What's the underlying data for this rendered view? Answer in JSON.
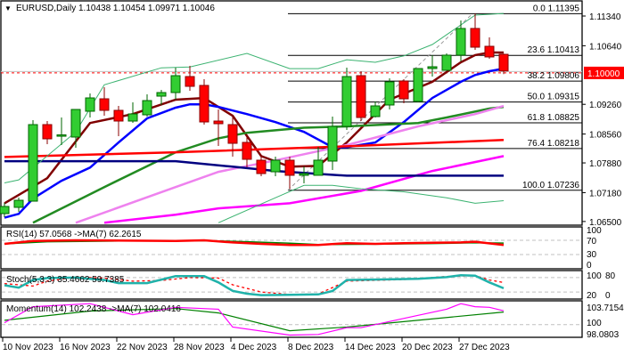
{
  "header": {
    "menu_icon": "triangle-down-icon",
    "symbol_timeframe": "EURUSD,Daily",
    "ohlc": "1.10438 1.10454 1.09971 1.10046"
  },
  "colors": {
    "bull": "#32cd32",
    "bear": "#ff0000",
    "current_price": "#ff0000",
    "fib": "#000000"
  },
  "current_price_label": "1.10000",
  "price_axis": [
    "1.11340",
    "1.10640",
    "1.09260",
    "1.08560",
    "1.07880",
    "1.07180",
    "1.06500"
  ],
  "fibonacci": [
    {
      "label": "0.0 1.11395",
      "price": 1.11395
    },
    {
      "label": "23.6 1.10413",
      "price": 1.10413
    },
    {
      "label": "38.2 1.09806",
      "price": 1.09806
    },
    {
      "label": "50.0 1.09315",
      "price": 1.09315
    },
    {
      "label": "61.8 1.08825",
      "price": 1.08825
    },
    {
      "label": "76.4 1.08218",
      "price": 1.08218
    },
    {
      "label": "100.0 1.07236",
      "price": 1.07236
    }
  ],
  "date_axis": [
    {
      "bar": 0,
      "label": "10 Nov 2023"
    },
    {
      "bar": 4,
      "label": "16 Nov 2023"
    },
    {
      "bar": 8,
      "label": "22 Nov 2023"
    },
    {
      "bar": 12,
      "label": "28 Nov 2023"
    },
    {
      "bar": 16,
      "label": "4 Dec 2023"
    },
    {
      "bar": 20,
      "label": "8 Dec 2023"
    },
    {
      "bar": 24,
      "label": "14 Dec 2023"
    },
    {
      "bar": 28,
      "label": "20 Dec 2023"
    },
    {
      "bar": 32,
      "label": "27 Dec 2023"
    }
  ],
  "rsi": {
    "title": "RSI(14) 57.0568  ->MA(7) 62.2615",
    "levels": [
      "100",
      "70",
      "30",
      "0"
    ]
  },
  "stoch": {
    "title": "Stoch(5,3,3) 35.4662 59.7385",
    "levels": [
      "100",
      "80",
      "20",
      "0"
    ]
  },
  "momentum": {
    "title": "Momentum(14) 102.2438  ->MA(7) 102.0416",
    "levels": [
      "103.7154",
      "100",
      "98.0803"
    ]
  },
  "chart_data": {
    "type": "candlestick",
    "symbol": "EURUSD",
    "timeframe": "Daily",
    "ylim": [
      1.065,
      1.116
    ],
    "candles": [
      [
        1.06686,
        1.06937,
        1.06602,
        1.06854
      ],
      [
        1.06833,
        1.07063,
        1.06728,
        1.07
      ],
      [
        1.06979,
        1.08887,
        1.06979,
        1.08782
      ],
      [
        1.08782,
        1.08866,
        1.08321,
        1.08447
      ],
      [
        1.08531,
        1.0895,
        1.083,
        1.0854
      ],
      [
        1.08489,
        1.09139,
        1.08237,
        1.09139
      ],
      [
        1.09097,
        1.09516,
        1.0895,
        1.09411
      ],
      [
        1.0939,
        1.09663,
        1.08992,
        1.09118
      ],
      [
        1.09118,
        1.09223,
        1.0851,
        1.08866
      ],
      [
        1.08866,
        1.09306,
        1.08824,
        1.09034
      ],
      [
        1.09013,
        1.09495,
        1.08971,
        1.09348
      ],
      [
        1.09453,
        1.096,
        1.09244,
        1.09537
      ],
      [
        1.09537,
        1.10124,
        1.09369,
        1.09935
      ],
      [
        1.09914,
        1.10166,
        1.09579,
        1.09684
      ],
      [
        1.09705,
        1.09852,
        1.08782,
        1.08845
      ],
      [
        1.08866,
        1.09139,
        1.08279,
        1.08803
      ],
      [
        1.08782,
        1.0895,
        1.08028,
        1.08342
      ],
      [
        1.08363,
        1.08489,
        1.07776,
        1.07965
      ],
      [
        1.07944,
        1.08049,
        1.07567,
        1.07629
      ],
      [
        1.07671,
        1.08028,
        1.07567,
        1.07944
      ],
      [
        1.07944,
        1.08028,
        1.07273,
        1.07588
      ],
      [
        1.07588,
        1.07797,
        1.07399,
        1.07629
      ],
      [
        1.07588,
        1.08258,
        1.07588,
        1.07944
      ],
      [
        1.07923,
        1.08971,
        1.07713,
        1.0874
      ],
      [
        1.0874,
        1.10124,
        1.08657,
        1.09914
      ],
      [
        1.09935,
        1.1004,
        1.08866,
        1.0895
      ],
      [
        1.08971,
        1.09327,
        1.0895,
        1.09223
      ],
      [
        1.09244,
        1.09873,
        1.09139,
        1.09789
      ],
      [
        1.0981,
        1.09852,
        1.09286,
        1.0939
      ],
      [
        1.09327,
        1.10103,
        1.09306,
        1.10103
      ],
      [
        1.10103,
        1.10418,
        1.09914,
        1.10145
      ],
      [
        1.10061,
        1.1046,
        1.10061,
        1.10418
      ],
      [
        1.10418,
        1.11235,
        1.10271,
        1.11047
      ],
      [
        1.11047,
        1.11395,
        1.10543,
        1.10606
      ],
      [
        1.10627,
        1.10837,
        1.10334,
        1.10376
      ],
      [
        1.10438,
        1.10454,
        1.09971,
        1.10046
      ]
    ],
    "overlays": [
      {
        "color": "#800000",
        "points": [
          [
            0,
            1.0693
          ],
          [
            3,
            1.0752
          ],
          [
            6,
            1.0882
          ],
          [
            9,
            1.0903
          ],
          [
            12,
            1.0937
          ],
          [
            14,
            1.0941
          ],
          [
            16,
            1.0899
          ],
          [
            18,
            1.0804
          ],
          [
            20,
            1.0779
          ],
          [
            22,
            1.0781
          ],
          [
            24,
            1.0836
          ],
          [
            27,
            1.0937
          ],
          [
            30,
            1.0979
          ],
          [
            32,
            1.1025
          ],
          [
            33,
            1.1042
          ],
          [
            34,
            1.1048
          ],
          [
            35,
            1.1048
          ]
        ]
      },
      {
        "color": "#0000ff",
        "points": [
          [
            0,
            1.0659
          ],
          [
            1,
            1.0668
          ],
          [
            2,
            1.0704
          ],
          [
            4,
            1.0746
          ],
          [
            6,
            1.0777
          ],
          [
            8,
            1.0836
          ],
          [
            10,
            1.0893
          ],
          [
            12,
            1.0918
          ],
          [
            13,
            1.0926
          ],
          [
            14,
            1.0926
          ],
          [
            15,
            1.092
          ],
          [
            17,
            1.0903
          ],
          [
            19,
            1.0884
          ],
          [
            21,
            1.0861
          ],
          [
            23,
            1.0825
          ],
          [
            24,
            1.0825
          ],
          [
            26,
            1.0836
          ],
          [
            28,
            1.0884
          ],
          [
            30,
            1.0941
          ],
          [
            32,
            1.0979
          ],
          [
            33,
            1.0995
          ],
          [
            34,
            1.1004
          ],
          [
            35,
            1.101
          ]
        ]
      },
      {
        "color": "#228b22",
        "points": [
          [
            2,
            1.0647
          ],
          [
            7,
            1.0731
          ],
          [
            12,
            1.0813
          ],
          [
            15,
            1.0846
          ],
          [
            17,
            1.0859
          ],
          [
            21,
            1.0871
          ],
          [
            24,
            1.0874
          ],
          [
            29,
            1.0882
          ],
          [
            31,
            1.0895
          ],
          [
            34,
            1.0916
          ],
          [
            35,
            1.092
          ]
        ]
      },
      {
        "color": "#ee82ee",
        "points": [
          [
            5,
            1.0647
          ],
          [
            12,
            1.0731
          ],
          [
            15,
            1.0767
          ],
          [
            19,
            1.0794
          ],
          [
            24,
            1.083
          ],
          [
            29,
            1.0874
          ],
          [
            33,
            1.0903
          ],
          [
            35,
            1.0922
          ]
        ]
      },
      {
        "color": "#ff00ff",
        "points": [
          [
            7,
            1.0647
          ],
          [
            12,
            1.0666
          ],
          [
            15,
            1.0681
          ],
          [
            20,
            1.0693
          ],
          [
            25,
            1.0722
          ],
          [
            30,
            1.0769
          ],
          [
            35,
            1.0804
          ]
        ]
      },
      {
        "color": "#ff0000",
        "points": [
          [
            0,
            1.0802
          ],
          [
            12,
            1.0813
          ],
          [
            24,
            1.0827
          ],
          [
            35,
            1.0842
          ]
        ]
      },
      {
        "color": "#000080",
        "points": [
          [
            0,
            1.0792
          ],
          [
            12,
            1.0792
          ],
          [
            16,
            1.0779
          ],
          [
            19,
            1.0769
          ],
          [
            22,
            1.0762
          ],
          [
            24,
            1.0758
          ],
          [
            35,
            1.0758
          ]
        ]
      },
      {
        "color": "#3cb371",
        "thin": true,
        "points": [
          [
            0,
            1.0741
          ],
          [
            1,
            1.0748
          ],
          [
            5,
            1.0861
          ],
          [
            7,
            1.0972
          ],
          [
            11,
            1.1012
          ],
          [
            13,
            1.1014
          ],
          [
            17,
            1.1046
          ],
          [
            20,
            1.101
          ],
          [
            22,
            1.101
          ],
          [
            24,
            1.1031
          ],
          [
            26,
            1.1025
          ],
          [
            28,
            1.104
          ],
          [
            30,
            1.1067
          ],
          [
            32,
            1.1113
          ],
          [
            33,
            1.1136
          ],
          [
            35,
            1.114
          ]
        ]
      },
      {
        "color": "#3cb371",
        "thin": true,
        "points": [
          [
            15,
            1.0647
          ],
          [
            19,
            1.0706
          ],
          [
            21,
            1.0735
          ],
          [
            23,
            1.0735
          ],
          [
            25,
            1.0727
          ],
          [
            28,
            1.072
          ],
          [
            31,
            1.0706
          ],
          [
            33,
            1.0693
          ],
          [
            35,
            1.0699
          ]
        ]
      }
    ],
    "rsi": {
      "ylim": [
        0,
        100
      ],
      "levels": [
        70,
        30
      ],
      "rsi": [
        [
          0,
          60
        ],
        [
          2,
          68
        ],
        [
          5,
          70
        ],
        [
          12,
          68
        ],
        [
          14,
          70
        ],
        [
          16,
          64
        ],
        [
          18,
          60
        ],
        [
          20,
          57
        ],
        [
          22,
          57
        ],
        [
          24,
          62
        ],
        [
          26,
          60
        ],
        [
          28,
          62
        ],
        [
          30,
          63
        ],
        [
          32,
          64
        ],
        [
          33,
          66
        ],
        [
          35,
          57.0568
        ]
      ],
      "ma": [
        [
          0,
          60
        ],
        [
          3,
          66
        ],
        [
          8,
          68
        ],
        [
          14,
          69
        ],
        [
          17,
          66
        ],
        [
          20,
          62
        ],
        [
          22,
          58
        ],
        [
          26,
          59
        ],
        [
          30,
          61
        ],
        [
          33,
          63
        ],
        [
          35,
          62.2615
        ]
      ]
    },
    "stoch": {
      "ylim": [
        0,
        100
      ],
      "levels": [
        80,
        20
      ],
      "k": [
        [
          0,
          48
        ],
        [
          1,
          38
        ],
        [
          2,
          70
        ],
        [
          3,
          78
        ],
        [
          5,
          80
        ],
        [
          7,
          70
        ],
        [
          8,
          57
        ],
        [
          10,
          57
        ],
        [
          12,
          86
        ],
        [
          14,
          86
        ],
        [
          15,
          60
        ],
        [
          16,
          25
        ],
        [
          17,
          13
        ],
        [
          18,
          7
        ],
        [
          20,
          8
        ],
        [
          22,
          10
        ],
        [
          23,
          24
        ],
        [
          24,
          70
        ],
        [
          26,
          72
        ],
        [
          29,
          75
        ],
        [
          31,
          82
        ],
        [
          32,
          90
        ],
        [
          33,
          88
        ],
        [
          34,
          60
        ],
        [
          35,
          35.4662
        ]
      ],
      "d": [
        [
          0,
          55
        ],
        [
          2,
          45
        ],
        [
          3,
          65
        ],
        [
          5,
          82
        ],
        [
          7,
          78
        ],
        [
          9,
          65
        ],
        [
          11,
          68
        ],
        [
          13,
          80
        ],
        [
          15,
          78
        ],
        [
          16,
          50
        ],
        [
          18,
          20
        ],
        [
          20,
          10
        ],
        [
          22,
          12
        ],
        [
          24,
          65
        ],
        [
          28,
          72
        ],
        [
          31,
          85
        ],
        [
          33,
          88
        ],
        [
          34,
          70
        ],
        [
          35,
          59.7385
        ]
      ]
    },
    "momentum": {
      "ylim": [
        98.0803,
        103.7154
      ],
      "levels": [
        100
      ],
      "momentum": [
        [
          0,
          100.3
        ],
        [
          2,
          102.9
        ],
        [
          6,
          103.4
        ],
        [
          9,
          101.6
        ],
        [
          12,
          102.8
        ],
        [
          15,
          102.5
        ],
        [
          16,
          99.6
        ],
        [
          20,
          98.3
        ],
        [
          22,
          98.4
        ],
        [
          24,
          99.5
        ],
        [
          25,
          99.5
        ],
        [
          26,
          100.0
        ],
        [
          29,
          101.5
        ],
        [
          31,
          102.5
        ],
        [
          32,
          103.4
        ],
        [
          33,
          102.9
        ],
        [
          34,
          102.8
        ],
        [
          35,
          102.2438
        ]
      ],
      "ma": [
        [
          0,
          100.7
        ],
        [
          6,
          102.2
        ],
        [
          12,
          102.6
        ],
        [
          15,
          101.9
        ],
        [
          20,
          99.0
        ],
        [
          24,
          99.6
        ],
        [
          35,
          102.0416
        ]
      ]
    }
  }
}
